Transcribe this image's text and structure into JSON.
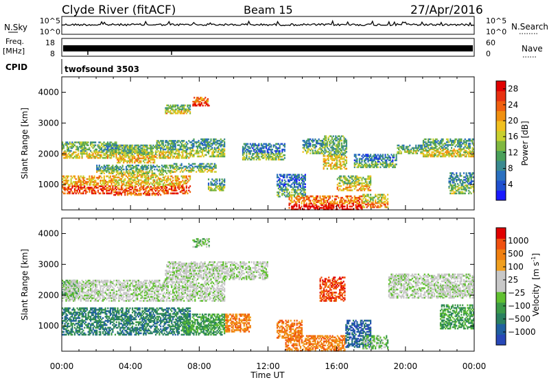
{
  "header": {
    "station": "Clyde River (fitACF)",
    "beam": "Beam 15",
    "date": "27/Apr/2016"
  },
  "panels": {
    "nsky": {
      "left_label": "N.Sky",
      "right_label": "N.Search",
      "ticks_left": [
        "10^5",
        "10^0"
      ],
      "ticks_right": [
        "10^5",
        "10^0"
      ]
    },
    "freq": {
      "left_label_1": "Freq.",
      "left_label_2": "[MHz]",
      "right_label": "Nave",
      "ticks_left": [
        "18",
        "8"
      ],
      "ticks_right": [
        "60",
        "0"
      ]
    },
    "cpid": {
      "label": "CPID",
      "value": "twofsound 3503"
    }
  },
  "chart_data": [
    {
      "type": "heatmap",
      "name": "power",
      "xlabel": "Time UT",
      "ylabel": "Slant Range [km]",
      "xlim": [
        0,
        24
      ],
      "ylim": [
        180,
        4500
      ],
      "x_ticks": [
        "00:00",
        "04:00",
        "08:00",
        "12:00",
        "16:00",
        "20:00",
        "00:00"
      ],
      "y_ticks": [
        "1000",
        "2000",
        "3000",
        "4000"
      ],
      "colorbar": {
        "label": "Power [dB]",
        "ticks": [
          "4",
          "8",
          "12",
          "16",
          "20",
          "24",
          "28"
        ],
        "range": [
          0,
          30
        ],
        "colors": [
          "#1a1aff",
          "#2050d0",
          "#2a70c0",
          "#3a8a90",
          "#4aa05a",
          "#80b840",
          "#c8d030",
          "#f0c020",
          "#f09010",
          "#f06010",
          "#e83010",
          "#e00000"
        ]
      },
      "bands": [
        {
          "t0": 0.0,
          "t1": 3.2,
          "r0": 1850,
          "r1": 2400,
          "p": 14
        },
        {
          "t0": 2.5,
          "t1": 5.0,
          "r0": 2000,
          "r1": 2300,
          "p": 10
        },
        {
          "t0": 3.2,
          "t1": 5.5,
          "r0": 1700,
          "r1": 2300,
          "p": 15
        },
        {
          "t0": 5.5,
          "t1": 7.5,
          "r0": 1850,
          "r1": 2450,
          "p": 13
        },
        {
          "t0": 7.5,
          "t1": 9.5,
          "r0": 1900,
          "r1": 2500,
          "p": 11
        },
        {
          "t0": 0.0,
          "t1": 3.0,
          "r0": 700,
          "r1": 1300,
          "p": 22
        },
        {
          "t0": 3.0,
          "t1": 6.0,
          "r0": 650,
          "r1": 1350,
          "p": 20
        },
        {
          "t0": 6.0,
          "t1": 7.5,
          "r0": 700,
          "r1": 1300,
          "p": 21
        },
        {
          "t0": 2.0,
          "t1": 6.5,
          "r0": 1350,
          "r1": 1650,
          "p": 12
        },
        {
          "t0": 6.5,
          "t1": 9.0,
          "r0": 1400,
          "r1": 1700,
          "p": 12
        },
        {
          "t0": 8.5,
          "t1": 9.5,
          "r0": 800,
          "r1": 1200,
          "p": 11
        },
        {
          "t0": 6.0,
          "t1": 7.5,
          "r0": 3300,
          "r1": 3600,
          "p": 14
        },
        {
          "t0": 7.6,
          "t1": 8.6,
          "r0": 3550,
          "r1": 3850,
          "p": 24
        },
        {
          "t0": 10.5,
          "t1": 13.0,
          "r0": 1800,
          "r1": 2350,
          "p": 9
        },
        {
          "t0": 12.5,
          "t1": 14.2,
          "r0": 600,
          "r1": 1350,
          "p": 8
        },
        {
          "t0": 14.0,
          "t1": 15.2,
          "r0": 2000,
          "r1": 2500,
          "p": 10
        },
        {
          "t0": 15.2,
          "t1": 16.6,
          "r0": 1500,
          "r1": 2600,
          "p": 14
        },
        {
          "t0": 13.2,
          "t1": 17.5,
          "r0": 180,
          "r1": 650,
          "p": 25
        },
        {
          "t0": 17.5,
          "t1": 19.0,
          "r0": 250,
          "r1": 700,
          "p": 18
        },
        {
          "t0": 16.0,
          "t1": 18.0,
          "r0": 800,
          "r1": 1300,
          "p": 16
        },
        {
          "t0": 17.0,
          "t1": 19.5,
          "r0": 1550,
          "r1": 2000,
          "p": 9
        },
        {
          "t0": 19.5,
          "t1": 21.0,
          "r0": 2000,
          "r1": 2300,
          "p": 12
        },
        {
          "t0": 21.0,
          "t1": 24.0,
          "r0": 1900,
          "r1": 2500,
          "p": 13
        },
        {
          "t0": 22.5,
          "t1": 24.0,
          "r0": 700,
          "r1": 1400,
          "p": 10
        }
      ]
    },
    {
      "type": "heatmap",
      "name": "velocity",
      "xlabel": "Time UT",
      "ylabel": "Slant Range [km]",
      "xlim": [
        0,
        24
      ],
      "ylim": [
        180,
        4500
      ],
      "x_ticks": [
        "00:00",
        "04:00",
        "08:00",
        "12:00",
        "16:00",
        "20:00",
        "00:00"
      ],
      "y_ticks": [
        "1000",
        "2000",
        "3000",
        "4000"
      ],
      "colorbar": {
        "label_main": "Velocity",
        "label_units": "[m s",
        "label_exp": "-1",
        "label_close": "]",
        "ticks": [
          "1000",
          "500",
          "100",
          "25",
          "−25",
          "−100",
          "−500",
          "−1000"
        ],
        "colors": [
          "#2848b8",
          "#2060a0",
          "#2a8060",
          "#3c9a48",
          "#60c030",
          "#c8c8c8",
          "#c8c8c8",
          "#f0a020",
          "#f08010",
          "#f05010",
          "#e00000"
        ]
      },
      "bands": [
        {
          "t0": 0.0,
          "t1": 1.0,
          "r0": 1900,
          "r1": 2500,
          "v": 3
        },
        {
          "t0": 0.0,
          "t1": 9.5,
          "r0": 1800,
          "r1": 2500,
          "v": 5
        },
        {
          "t0": 6.0,
          "t1": 12.0,
          "r0": 2500,
          "r1": 3100,
          "v": 5
        },
        {
          "t0": 0.0,
          "t1": 7.5,
          "r0": 700,
          "r1": 1600,
          "v": 2
        },
        {
          "t0": 7.0,
          "t1": 9.5,
          "r0": 700,
          "r1": 1400,
          "v": 3
        },
        {
          "t0": 7.6,
          "t1": 8.6,
          "r0": 3550,
          "r1": 3850,
          "v": 4
        },
        {
          "t0": 9.5,
          "t1": 11.0,
          "r0": 800,
          "r1": 1400,
          "v": 8
        },
        {
          "t0": 12.5,
          "t1": 14.0,
          "r0": 600,
          "r1": 1200,
          "v": 8
        },
        {
          "t0": 13.0,
          "t1": 16.5,
          "r0": 180,
          "r1": 700,
          "v": 8
        },
        {
          "t0": 15.0,
          "t1": 16.5,
          "r0": 1800,
          "r1": 2600,
          "v": 9
        },
        {
          "t0": 16.5,
          "t1": 18.0,
          "r0": 300,
          "r1": 1200,
          "v": 1
        },
        {
          "t0": 17.5,
          "t1": 19.0,
          "r0": 250,
          "r1": 700,
          "v": 4
        },
        {
          "t0": 19.0,
          "t1": 24.0,
          "r0": 1900,
          "r1": 2700,
          "v": 5
        },
        {
          "t0": 22.0,
          "t1": 24.0,
          "r0": 900,
          "r1": 1700,
          "v": 3
        }
      ]
    }
  ]
}
